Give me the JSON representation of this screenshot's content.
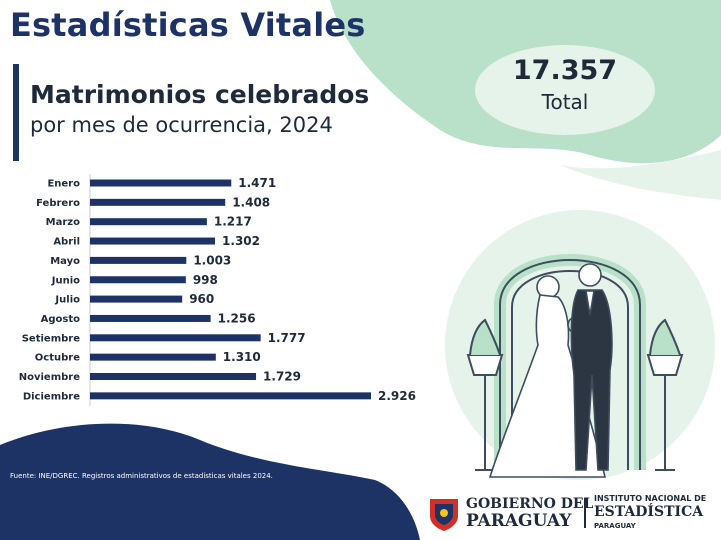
{
  "header": {
    "title": "Estadísticas Vitales",
    "subtitle_bold": "Matrimonios celebrados",
    "subtitle_regular": "por mes de ocurrencia, 2024"
  },
  "total": {
    "value": "17.357",
    "label": "Total"
  },
  "chart_data": {
    "type": "bar",
    "orientation": "horizontal",
    "categories": [
      "Enero",
      "Febrero",
      "Marzo",
      "Abril",
      "Mayo",
      "Junio",
      "Julio",
      "Agosto",
      "Setiembre",
      "Octubre",
      "Noviembre",
      "Diciembre"
    ],
    "values": [
      1471,
      1408,
      1217,
      1302,
      1003,
      998,
      960,
      1256,
      1777,
      1310,
      1729,
      2926
    ],
    "value_labels": [
      "1.471",
      "1.408",
      "1.217",
      "1.302",
      "1.003",
      "998",
      "960",
      "1.256",
      "1.777",
      "1.310",
      "1.729",
      "2.926"
    ],
    "title": "Matrimonios celebrados por mes de ocurrencia, 2024",
    "xlabel": "",
    "ylabel": "",
    "xlim": [
      0,
      2926
    ],
    "grid": false,
    "legend": "none",
    "bar_color": "#1d3366"
  },
  "source": "Fuente: INE/DGREC. Registros administrativos de estadísticas vitales 2024.",
  "logos": {
    "gobierno_line1": "GOBIERNO DEL",
    "gobierno_line2": "PARAGUAY",
    "ine_line1": "INSTITUTO NACIONAL DE",
    "ine_line2": "ESTADÍSTICA",
    "ine_line3": "PARAGUAY"
  },
  "colors": {
    "navy": "#1d3366",
    "mint_green": "#b9e0c8",
    "light_mint": "#e6f3ea",
    "text_dark": "#1e2a3a"
  }
}
